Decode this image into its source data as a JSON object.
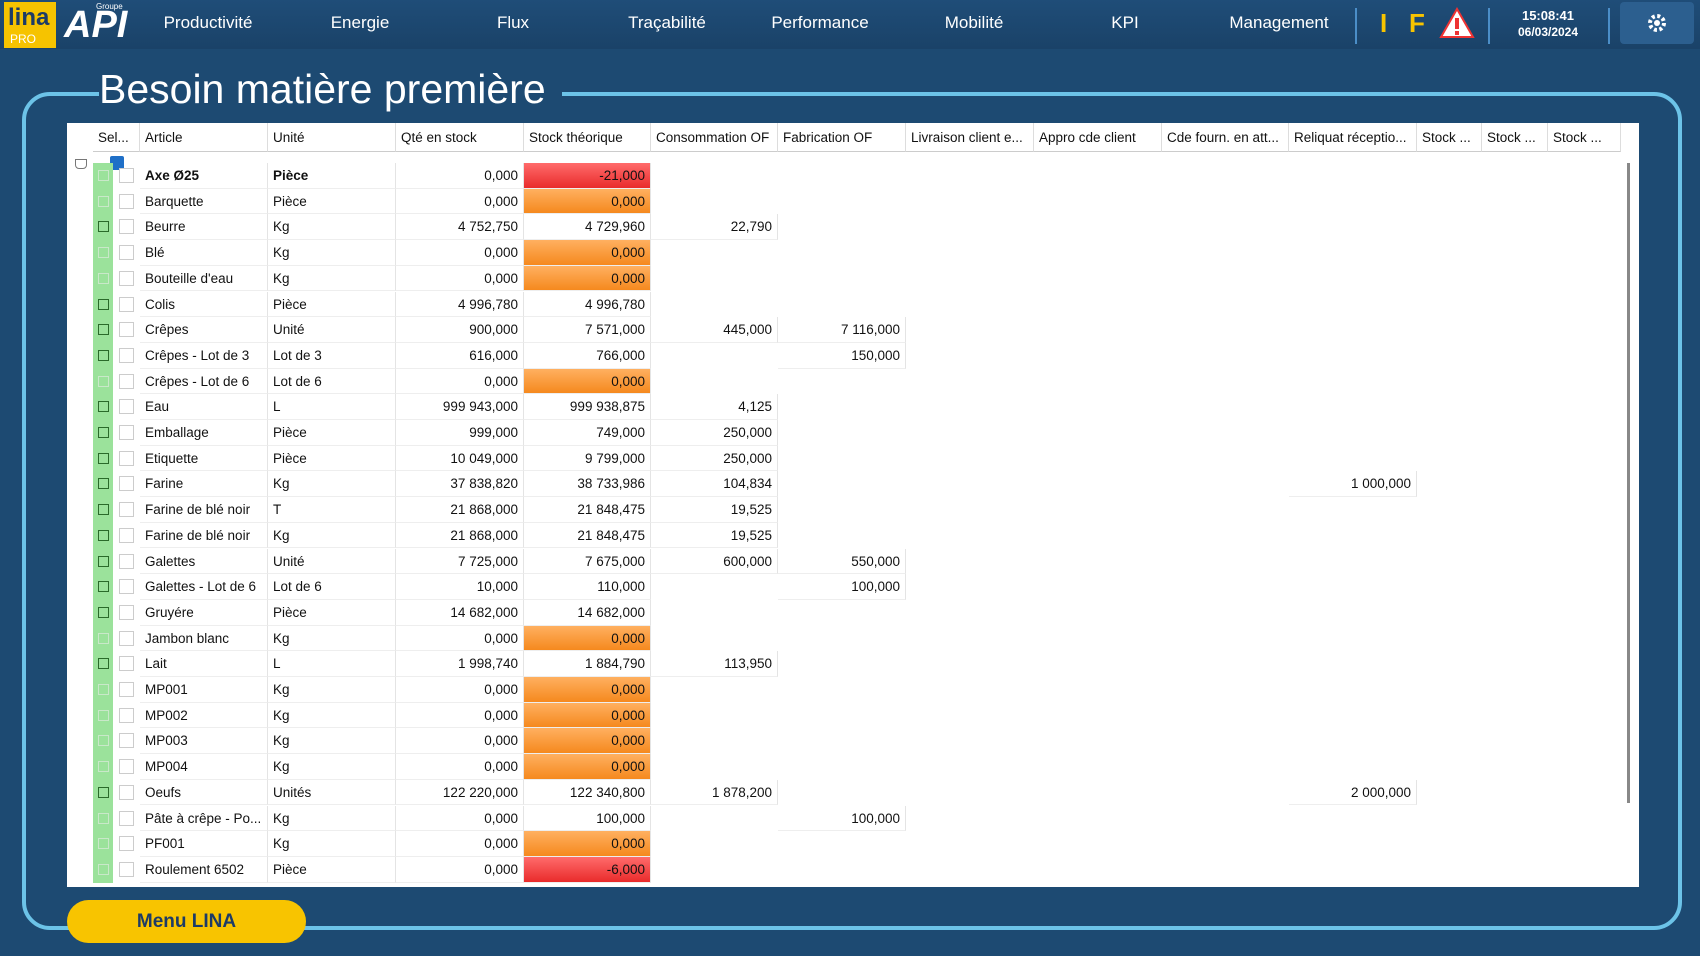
{
  "header": {
    "logo_lina": "lina",
    "logo_pro": "PRO",
    "logo_groupe": "Groupe",
    "logo_api": "API",
    "nav": [
      "Productivité",
      "Energie",
      "Flux",
      "Traçabilité",
      "Performance",
      "Mobilité",
      "KPI",
      "Management"
    ],
    "icons": [
      "I",
      "F"
    ],
    "time": "15:08:41",
    "date": "06/03/2024"
  },
  "title": "Besoin matière première",
  "table": {
    "columns": [
      "Sel...",
      "Article",
      "Unité",
      "Qté en stock",
      "Stock théorique",
      "Consommation OF",
      "Fabrication OF",
      "Livraison client e...",
      "Appro cde client",
      "Cde fourn. en att...",
      "Reliquat réceptio...",
      "Stock ...",
      "Stock ...",
      "Stock ..."
    ],
    "rows": [
      {
        "expandable": false,
        "cells": [
          "Axe Ø25",
          "Pièce",
          "0,000",
          "-21,000"
        ]
      },
      {
        "expandable": false,
        "cells": [
          "Barquette",
          "Pièce",
          "0,000",
          "0,000"
        ]
      },
      {
        "expandable": true,
        "cells": [
          "Beurre",
          "Kg",
          "4 752,750",
          "4 729,960",
          "22,790"
        ]
      },
      {
        "expandable": false,
        "cells": [
          "Blé",
          "Kg",
          "0,000",
          "0,000"
        ]
      },
      {
        "expandable": false,
        "cells": [
          "Bouteille d'eau",
          "Kg",
          "0,000",
          "0,000"
        ]
      },
      {
        "expandable": true,
        "cells": [
          "Colis",
          "Pièce",
          "4 996,780",
          "4 996,780"
        ]
      },
      {
        "expandable": true,
        "cells": [
          "Crêpes",
          "Unité",
          "900,000",
          "7 571,000",
          "445,000",
          "7 116,000"
        ]
      },
      {
        "expandable": true,
        "cells": [
          "Crêpes - Lot de 3",
          "Lot de 3",
          "616,000",
          "766,000",
          null,
          "150,000"
        ]
      },
      {
        "expandable": false,
        "cells": [
          "Crêpes - Lot de 6",
          "Lot de 6",
          "0,000",
          "0,000"
        ]
      },
      {
        "expandable": true,
        "cells": [
          "Eau",
          "L",
          "999 943,000",
          "999 938,875",
          "4,125"
        ]
      },
      {
        "expandable": true,
        "cells": [
          "Emballage",
          "Pièce",
          "999,000",
          "749,000",
          "250,000"
        ]
      },
      {
        "expandable": true,
        "cells": [
          "Etiquette",
          "Pièce",
          "10 049,000",
          "9 799,000",
          "250,000"
        ]
      },
      {
        "expandable": true,
        "cells": [
          "Farine",
          "Kg",
          "37 838,820",
          "38 733,986",
          "104,834",
          null,
          null,
          null,
          null,
          "1 000,000"
        ]
      },
      {
        "expandable": true,
        "cells": [
          "Farine de blé noir",
          "T",
          "21 868,000",
          "21 848,475",
          "19,525"
        ]
      },
      {
        "expandable": true,
        "cells": [
          "Farine de blé noir",
          "Kg",
          "21 868,000",
          "21 848,475",
          "19,525"
        ]
      },
      {
        "expandable": true,
        "cells": [
          "Galettes",
          "Unité",
          "7 725,000",
          "7 675,000",
          "600,000",
          "550,000"
        ]
      },
      {
        "expandable": true,
        "cells": [
          "Galettes - Lot de 6",
          "Lot de 6",
          "10,000",
          "110,000",
          null,
          "100,000"
        ]
      },
      {
        "expandable": true,
        "cells": [
          "Gruyére",
          "Pièce",
          "14 682,000",
          "14 682,000"
        ]
      },
      {
        "expandable": false,
        "cells": [
          "Jambon blanc",
          "Kg",
          "0,000",
          "0,000"
        ]
      },
      {
        "expandable": true,
        "cells": [
          "Lait",
          "L",
          "1 998,740",
          "1 884,790",
          "113,950"
        ]
      },
      {
        "expandable": false,
        "cells": [
          "MP001",
          "Kg",
          "0,000",
          "0,000"
        ]
      },
      {
        "expandable": false,
        "cells": [
          "MP002",
          "Kg",
          "0,000",
          "0,000"
        ]
      },
      {
        "expandable": false,
        "cells": [
          "MP003",
          "Kg",
          "0,000",
          "0,000"
        ]
      },
      {
        "expandable": false,
        "cells": [
          "MP004",
          "Kg",
          "0,000",
          "0,000"
        ]
      },
      {
        "expandable": true,
        "cells": [
          "Oeufs",
          "Unités",
          "122 220,000",
          "122 340,800",
          "1 878,200",
          null,
          null,
          null,
          null,
          "2 000,000"
        ]
      },
      {
        "expandable": false,
        "cells": [
          "Pâte à crêpe - Po...",
          "Kg",
          "0,000",
          "100,000",
          null,
          "100,000"
        ]
      },
      {
        "expandable": false,
        "cells": [
          "PF001",
          "Kg",
          "0,000",
          "0,000"
        ]
      },
      {
        "expandable": false,
        "cells": [
          "Roulement 6502",
          "Pièce",
          "0,000",
          "-6,000"
        ]
      }
    ]
  },
  "menu_button": "Menu LINA"
}
